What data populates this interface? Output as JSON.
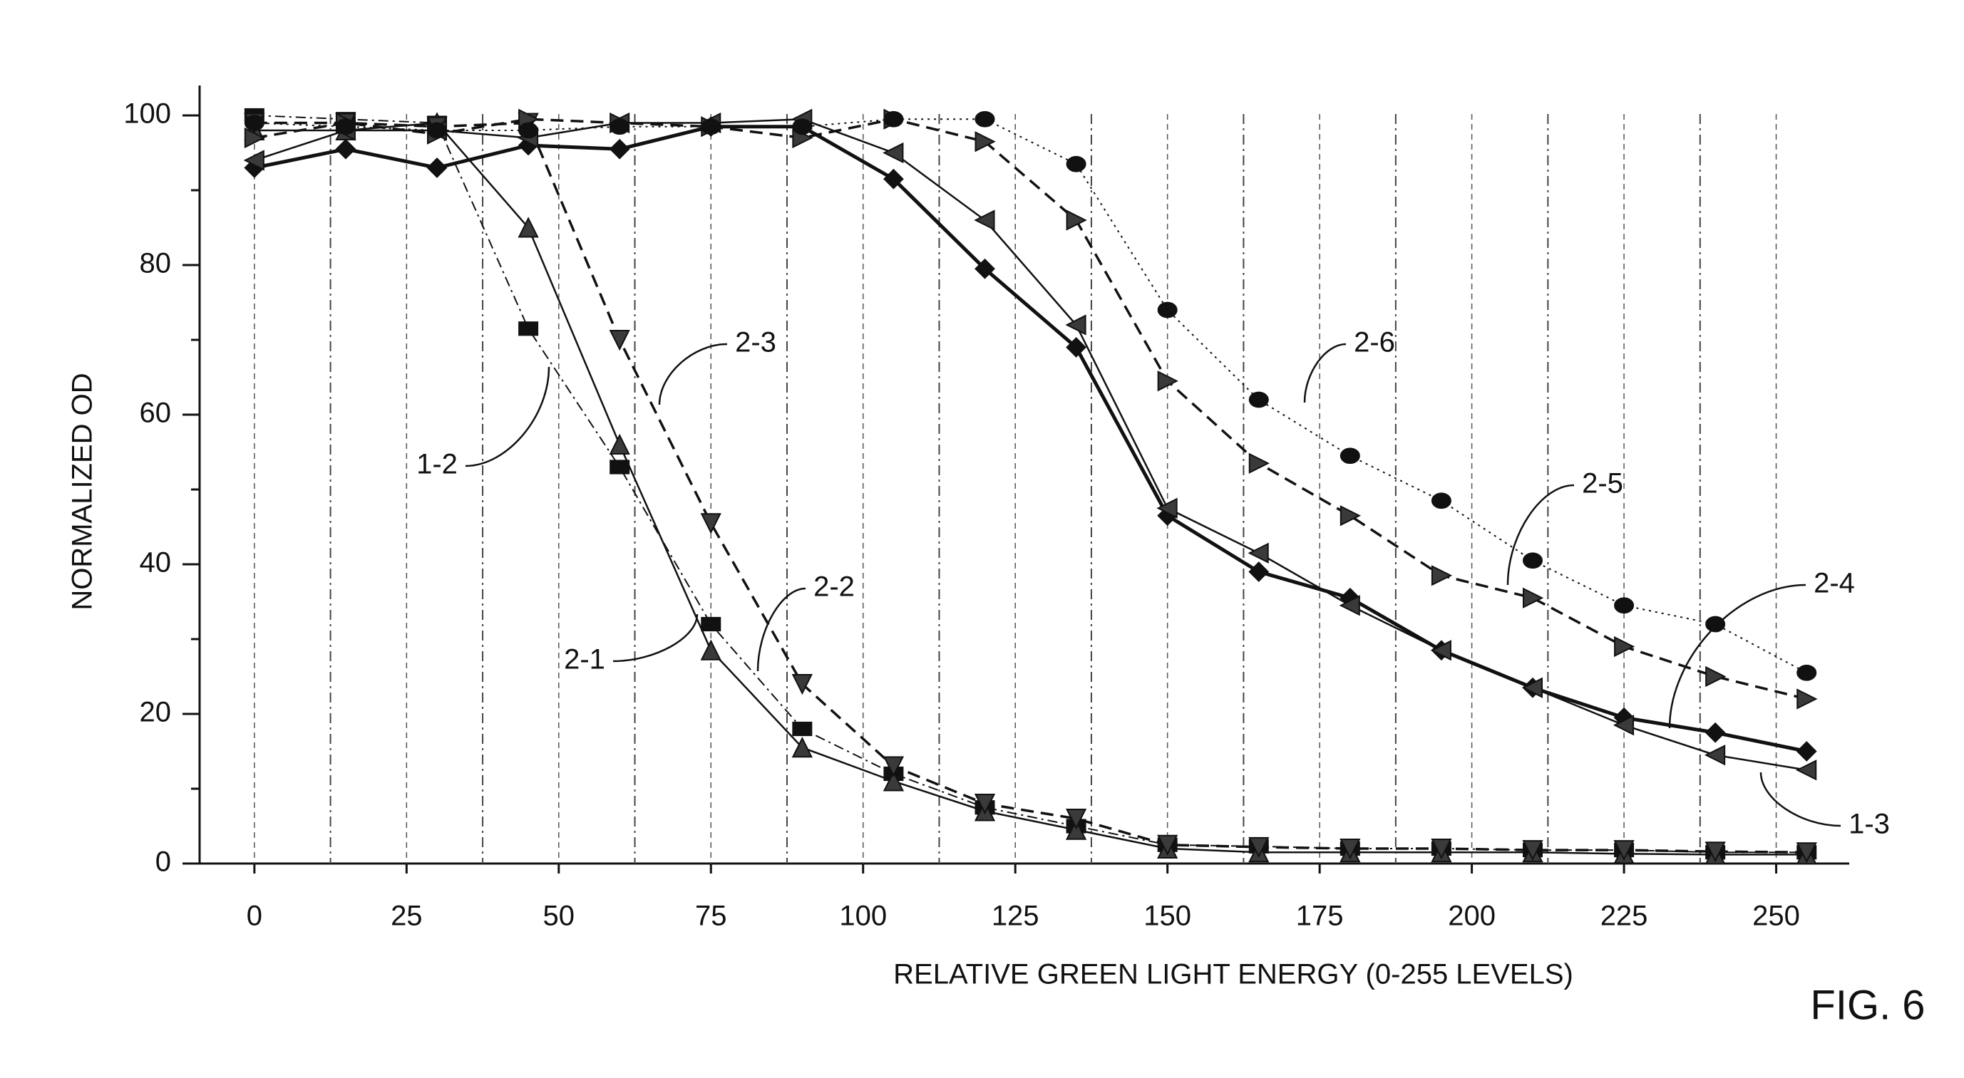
{
  "chart_data": {
    "type": "line",
    "figure_label": "FIG. 6",
    "xlabel": "RELATIVE GREEN LIGHT ENERGY (0-255 LEVELS)",
    "ylabel": "NORMALIZED OD",
    "x": [
      0,
      15,
      30,
      45,
      60,
      75,
      90,
      105,
      120,
      135,
      150,
      165,
      180,
      195,
      210,
      225,
      240,
      255
    ],
    "xlim": [
      -9,
      262
    ],
    "xticks": [
      0,
      25,
      50,
      75,
      100,
      125,
      150,
      175,
      200,
      225,
      250
    ],
    "ylim": [
      0,
      104
    ],
    "yticks": [
      0,
      20,
      40,
      60,
      80,
      100
    ],
    "grid": true,
    "annotations": [
      "1-2",
      "2-1",
      "2-2",
      "2-3",
      "2-4",
      "1-3",
      "2-5",
      "2-6"
    ],
    "series": [
      {
        "marker": "square",
        "line": "dashdot",
        "color": "#111111",
        "values": [
          100,
          99.5,
          99,
          71.5,
          53,
          32,
          18,
          12,
          7.5,
          5,
          2.5,
          2.3,
          2,
          2,
          1.8,
          1.8,
          1.5,
          1.5
        ]
      },
      {
        "marker": "triangle-up",
        "line": "solid",
        "color": "#111111",
        "values": [
          98,
          98,
          99,
          85,
          56,
          28.5,
          15.5,
          11,
          7,
          4.5,
          2,
          1.5,
          1.5,
          1.5,
          1.5,
          1.3,
          1.2,
          1.2
        ]
      },
      {
        "marker": "triangle-down",
        "line": "dashed",
        "color": "#111111",
        "values": [
          99,
          99,
          98.5,
          99,
          70,
          45.5,
          24,
          13,
          8,
          6,
          2.5,
          2.2,
          2,
          2,
          1.8,
          1.8,
          1.6,
          1.5
        ]
      },
      {
        "marker": "diamond",
        "line": "bold",
        "color": "#111111",
        "values": [
          93,
          95.5,
          93,
          96,
          95.5,
          98.5,
          98.5,
          91.5,
          79.5,
          69,
          46.5,
          39,
          35.5,
          28.5,
          23.5,
          19.5,
          17.5,
          15
        ]
      },
      {
        "marker": "triangle-left",
        "line": "solid",
        "color": "#111111",
        "values": [
          94,
          98,
          98,
          97,
          99,
          99,
          99.5,
          95,
          86,
          72,
          47.5,
          41.5,
          34.5,
          28.5,
          23.5,
          18.5,
          14.5,
          12.5
        ]
      },
      {
        "marker": "triangle-right",
        "line": "dashed",
        "color": "#111111",
        "values": [
          97,
          99,
          97.5,
          99.5,
          99,
          98.5,
          97,
          99.5,
          96.5,
          86,
          64.5,
          53.5,
          46.5,
          38.5,
          35.5,
          29,
          25,
          22
        ]
      },
      {
        "marker": "circle",
        "line": "dotted",
        "color": "#111111",
        "values": [
          99,
          98.5,
          98,
          98,
          98.5,
          98.5,
          98.5,
          99.5,
          99.5,
          93.5,
          74,
          62,
          54.5,
          48.5,
          40.5,
          34.5,
          32,
          25.5
        ]
      }
    ]
  }
}
